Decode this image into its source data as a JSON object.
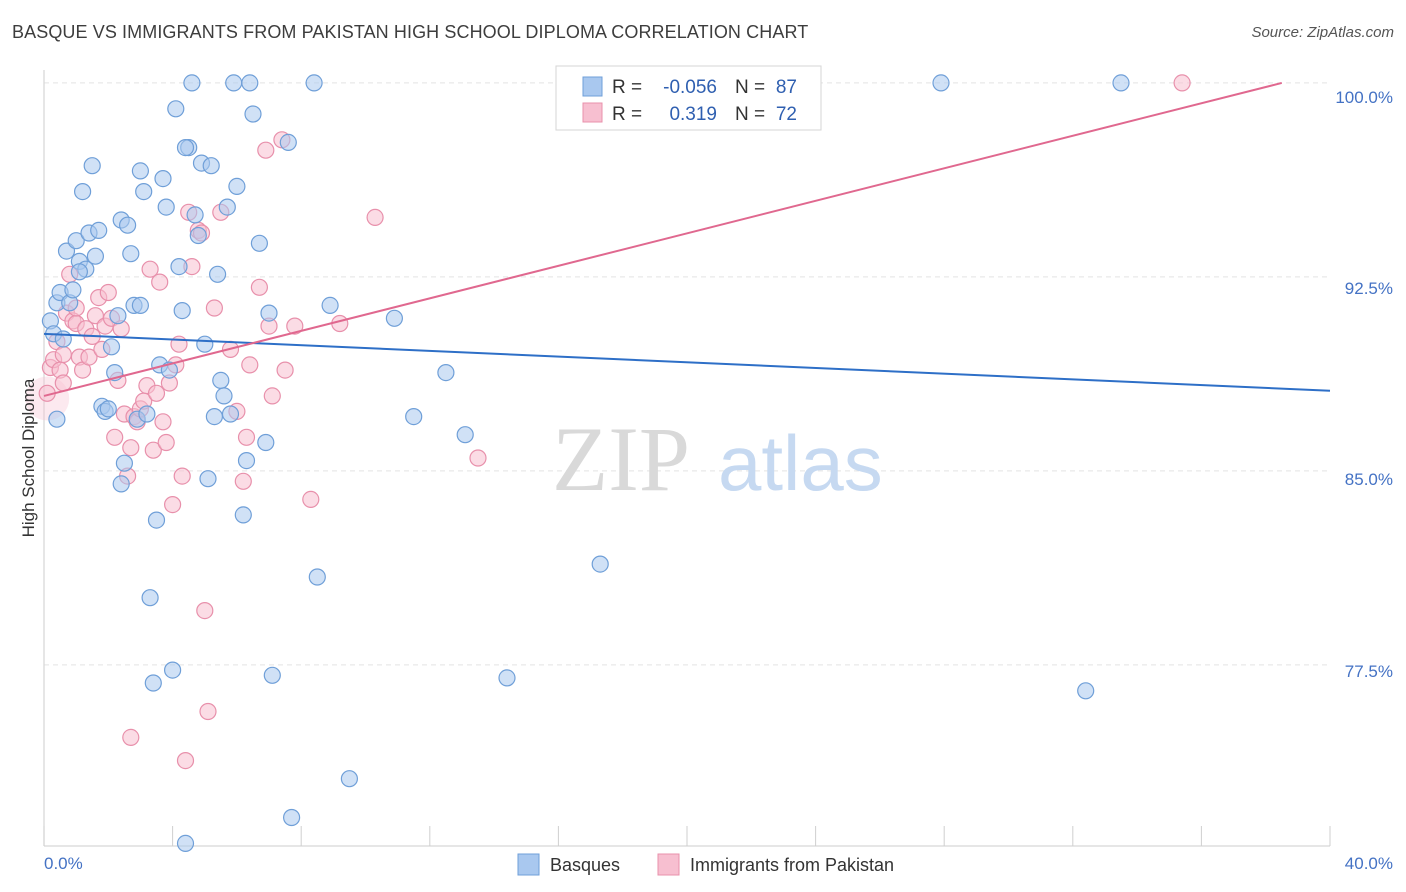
{
  "header": {
    "title": "BASQUE VS IMMIGRANTS FROM PAKISTAN HIGH SCHOOL DIPLOMA CORRELATION CHART",
    "source": "Source: ZipAtlas.com"
  },
  "watermark": {
    "zip": "ZIP",
    "atlas": "atlas"
  },
  "stats_box": {
    "rows": [
      {
        "r_label": "R =",
        "r_value": "-0.056",
        "n_label": "N =",
        "n_value": "87",
        "color": "#a9c8ef",
        "stroke": "#6f9fd8"
      },
      {
        "r_label": "R =",
        "r_value": "0.319",
        "n_label": "N =",
        "n_value": "72",
        "color": "#f7bfd0",
        "stroke": "#e890ab"
      }
    ]
  },
  "legend": [
    {
      "label": "Basques",
      "color": "#a9c8ef",
      "stroke": "#6f9fd8"
    },
    {
      "label": "Immigrants from Pakistan",
      "color": "#f7bfd0",
      "stroke": "#e890ab"
    }
  ],
  "colors": {
    "blue_fill": "#a9c8ef",
    "blue_stroke": "#6f9fd8",
    "blue_line": "#2e6fc7",
    "pink_fill": "#f7bfd0",
    "pink_stroke": "#e890ab",
    "pink_line": "#e0688f",
    "grid": "#e4e4e4",
    "tick_label": "#4472c4"
  },
  "chart_data": {
    "type": "scatter",
    "title": "BASQUE VS IMMIGRANTS FROM PAKISTAN HIGH SCHOOL DIPLOMA CORRELATION CHART",
    "xlabel": "",
    "ylabel": "High School Diploma",
    "xlim": [
      0,
      40
    ],
    "ylim": [
      70.5,
      100.5
    ],
    "x_tick_labels": [
      "0.0%",
      "40.0%"
    ],
    "y_ticks": [
      77.5,
      85.0,
      92.5,
      100.0
    ],
    "y_tick_labels": [
      "77.5%",
      "85.0%",
      "92.5%",
      "100.0%"
    ],
    "grid": true,
    "legend_position": "bottom-center",
    "series": [
      {
        "name": "Basques",
        "trend": {
          "x": [
            0,
            40
          ],
          "y": [
            90.3,
            88.1
          ]
        },
        "points": [
          [
            0.2,
            90.8
          ],
          [
            0.3,
            90.3
          ],
          [
            0.4,
            91.5
          ],
          [
            0.5,
            91.9
          ],
          [
            0.6,
            90.1
          ],
          [
            0.7,
            93.5
          ],
          [
            0.8,
            91.5
          ],
          [
            0.9,
            92.0
          ],
          [
            1.0,
            93.9
          ],
          [
            1.1,
            93.1
          ],
          [
            1.2,
            95.8
          ],
          [
            1.3,
            92.8
          ],
          [
            1.4,
            94.2
          ],
          [
            1.5,
            96.8
          ],
          [
            1.6,
            93.3
          ],
          [
            1.7,
            94.3
          ],
          [
            1.8,
            87.5
          ],
          [
            1.9,
            87.3
          ],
          [
            2.0,
            87.4
          ],
          [
            2.1,
            89.8
          ],
          [
            2.2,
            88.8
          ],
          [
            2.3,
            91.0
          ],
          [
            2.4,
            94.7
          ],
          [
            2.5,
            85.3
          ],
          [
            2.6,
            94.5
          ],
          [
            2.7,
            93.4
          ],
          [
            2.8,
            91.4
          ],
          [
            2.9,
            87.0
          ],
          [
            3.0,
            96.6
          ],
          [
            3.1,
            95.8
          ],
          [
            3.2,
            87.2
          ],
          [
            3.3,
            80.1
          ],
          [
            3.4,
            76.8
          ],
          [
            3.5,
            83.1
          ],
          [
            3.6,
            89.1
          ],
          [
            3.7,
            96.3
          ],
          [
            3.8,
            95.2
          ],
          [
            3.9,
            88.9
          ],
          [
            4.0,
            77.3
          ],
          [
            4.1,
            99.0
          ],
          [
            4.2,
            92.9
          ],
          [
            4.3,
            91.2
          ],
          [
            4.4,
            70.6
          ],
          [
            4.5,
            97.5
          ],
          [
            4.6,
            100.0
          ],
          [
            4.7,
            94.9
          ],
          [
            4.8,
            94.1
          ],
          [
            4.9,
            96.9
          ],
          [
            5.0,
            89.9
          ],
          [
            5.1,
            84.7
          ],
          [
            5.2,
            96.8
          ],
          [
            5.3,
            87.1
          ],
          [
            5.4,
            92.6
          ],
          [
            5.5,
            88.5
          ],
          [
            5.6,
            87.9
          ],
          [
            5.7,
            95.2
          ],
          [
            5.8,
            87.2
          ],
          [
            5.9,
            100.0
          ],
          [
            6.0,
            96.0
          ],
          [
            6.2,
            83.3
          ],
          [
            6.3,
            85.4
          ],
          [
            6.4,
            100.0
          ],
          [
            6.5,
            98.8
          ],
          [
            6.7,
            93.8
          ],
          [
            6.9,
            86.1
          ],
          [
            7.0,
            91.1
          ],
          [
            7.1,
            77.1
          ],
          [
            7.6,
            97.7
          ],
          [
            7.7,
            71.6
          ],
          [
            8.4,
            100.0
          ],
          [
            8.5,
            80.9
          ],
          [
            8.9,
            91.4
          ],
          [
            9.5,
            73.1
          ],
          [
            10.9,
            90.9
          ],
          [
            11.5,
            87.1
          ],
          [
            12.5,
            88.8
          ],
          [
            13.1,
            86.4
          ],
          [
            14.4,
            77.0
          ],
          [
            17.3,
            81.4
          ],
          [
            27.9,
            100.0
          ],
          [
            32.4,
            76.5
          ],
          [
            33.5,
            100.0
          ],
          [
            0.4,
            87.0
          ],
          [
            1.1,
            92.7
          ],
          [
            2.4,
            84.5
          ],
          [
            3.0,
            91.4
          ],
          [
            4.4,
            97.5
          ]
        ]
      },
      {
        "name": "Immigrants from Pakistan",
        "trend": {
          "x": [
            0,
            38.5
          ],
          "y": [
            87.9,
            100.0
          ]
        },
        "points": [
          [
            0.1,
            88.0
          ],
          [
            0.2,
            89.0
          ],
          [
            0.3,
            89.3
          ],
          [
            0.4,
            90.0
          ],
          [
            0.5,
            88.9
          ],
          [
            0.6,
            89.5
          ],
          [
            0.7,
            91.1
          ],
          [
            0.8,
            92.6
          ],
          [
            0.9,
            90.8
          ],
          [
            1.0,
            90.7
          ],
          [
            1.1,
            89.4
          ],
          [
            1.2,
            88.9
          ],
          [
            1.3,
            90.5
          ],
          [
            1.4,
            89.4
          ],
          [
            1.5,
            90.2
          ],
          [
            1.6,
            91.0
          ],
          [
            1.7,
            91.7
          ],
          [
            1.8,
            89.7
          ],
          [
            1.9,
            90.6
          ],
          [
            2.0,
            91.9
          ],
          [
            2.1,
            90.9
          ],
          [
            2.2,
            86.3
          ],
          [
            2.3,
            88.5
          ],
          [
            2.4,
            90.5
          ],
          [
            2.5,
            87.2
          ],
          [
            2.6,
            84.8
          ],
          [
            2.7,
            85.9
          ],
          [
            2.8,
            87.1
          ],
          [
            2.9,
            86.9
          ],
          [
            3.0,
            87.4
          ],
          [
            3.1,
            87.7
          ],
          [
            3.2,
            88.3
          ],
          [
            3.3,
            92.8
          ],
          [
            3.4,
            85.8
          ],
          [
            3.5,
            88.0
          ],
          [
            3.6,
            92.3
          ],
          [
            3.7,
            86.9
          ],
          [
            3.8,
            86.1
          ],
          [
            3.9,
            88.4
          ],
          [
            4.0,
            83.7
          ],
          [
            4.1,
            89.1
          ],
          [
            4.2,
            89.9
          ],
          [
            4.3,
            84.8
          ],
          [
            4.4,
            73.8
          ],
          [
            4.5,
            95.0
          ],
          [
            4.6,
            92.9
          ],
          [
            4.8,
            94.3
          ],
          [
            4.9,
            94.2
          ],
          [
            5.0,
            79.6
          ],
          [
            5.1,
            75.7
          ],
          [
            5.3,
            91.3
          ],
          [
            5.5,
            95.0
          ],
          [
            5.8,
            89.7
          ],
          [
            6.0,
            87.3
          ],
          [
            6.2,
            84.6
          ],
          [
            6.3,
            86.3
          ],
          [
            6.4,
            89.1
          ],
          [
            6.7,
            92.1
          ],
          [
            6.9,
            97.4
          ],
          [
            7.0,
            90.6
          ],
          [
            7.1,
            87.9
          ],
          [
            7.4,
            97.8
          ],
          [
            7.5,
            88.9
          ],
          [
            7.8,
            90.6
          ],
          [
            8.3,
            83.9
          ],
          [
            9.2,
            90.7
          ],
          [
            10.3,
            94.8
          ],
          [
            13.5,
            85.5
          ],
          [
            35.4,
            100.0
          ],
          [
            2.7,
            74.7
          ],
          [
            1.0,
            91.3
          ],
          [
            0.6,
            88.4
          ]
        ]
      }
    ]
  },
  "axes": {
    "ylabel": "High School Diploma",
    "x_left_label": "0.0%",
    "x_right_label": "40.0%",
    "y_labels": [
      "77.5%",
      "85.0%",
      "92.5%",
      "100.0%"
    ]
  }
}
